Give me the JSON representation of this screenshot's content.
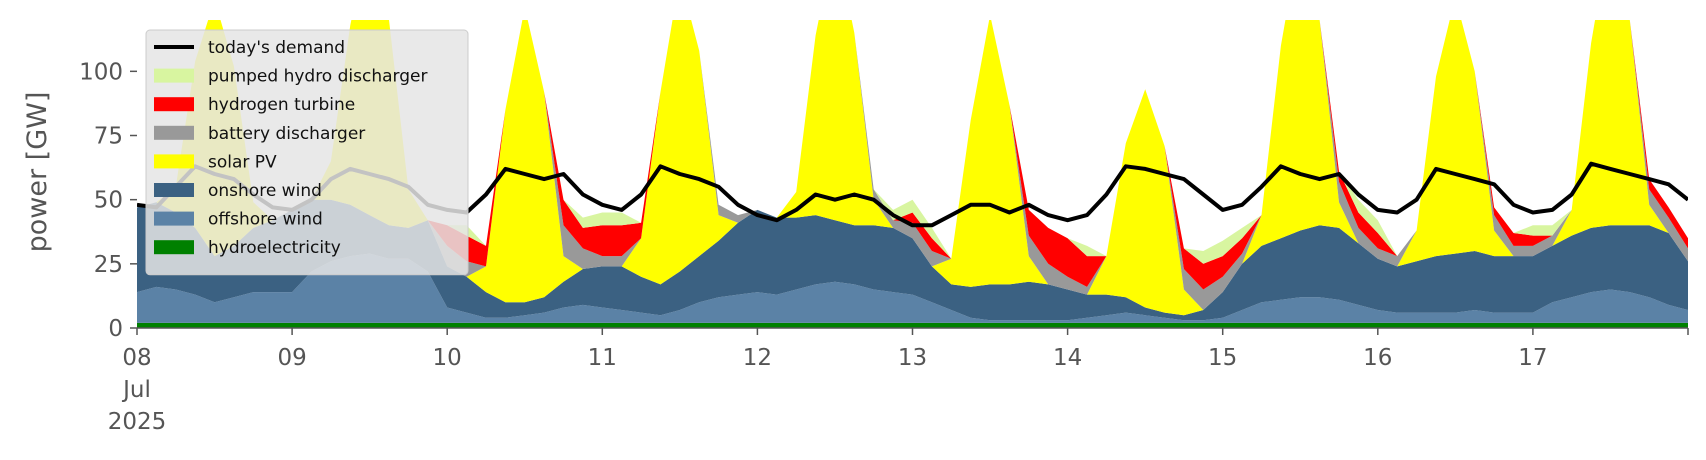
{
  "chart_data": {
    "type": "area",
    "title": "",
    "xlabel": "",
    "ylabel": "power [GW]",
    "ylim": [
      0,
      120
    ],
    "yticks": [
      0,
      25,
      50,
      75,
      100
    ],
    "x_start": "2025-07-08",
    "x_end": "2025-07-18",
    "x": [
      "2025-07-08 00:00",
      "2025-07-08 03:00",
      "2025-07-08 06:00",
      "2025-07-08 09:00",
      "2025-07-08 12:00",
      "2025-07-08 15:00",
      "2025-07-08 18:00",
      "2025-07-08 21:00",
      "2025-07-09 00:00",
      "2025-07-09 03:00",
      "2025-07-09 06:00",
      "2025-07-09 09:00",
      "2025-07-09 12:00",
      "2025-07-09 15:00",
      "2025-07-09 18:00",
      "2025-07-09 21:00",
      "2025-07-10 00:00",
      "2025-07-10 03:00",
      "2025-07-10 06:00",
      "2025-07-10 09:00",
      "2025-07-10 12:00",
      "2025-07-10 15:00",
      "2025-07-10 18:00",
      "2025-07-10 21:00",
      "2025-07-11 00:00",
      "2025-07-11 03:00",
      "2025-07-11 06:00",
      "2025-07-11 09:00",
      "2025-07-11 12:00",
      "2025-07-11 15:00",
      "2025-07-11 18:00",
      "2025-07-11 21:00",
      "2025-07-12 00:00",
      "2025-07-12 03:00",
      "2025-07-12 06:00",
      "2025-07-12 09:00",
      "2025-07-12 12:00",
      "2025-07-12 15:00",
      "2025-07-12 18:00",
      "2025-07-12 21:00",
      "2025-07-13 00:00",
      "2025-07-13 03:00",
      "2025-07-13 06:00",
      "2025-07-13 09:00",
      "2025-07-13 12:00",
      "2025-07-13 15:00",
      "2025-07-13 18:00",
      "2025-07-13 21:00",
      "2025-07-14 00:00",
      "2025-07-14 03:00",
      "2025-07-14 06:00",
      "2025-07-14 09:00",
      "2025-07-14 12:00",
      "2025-07-14 15:00",
      "2025-07-14 18:00",
      "2025-07-14 21:00",
      "2025-07-15 00:00",
      "2025-07-15 03:00",
      "2025-07-15 06:00",
      "2025-07-15 09:00",
      "2025-07-15 12:00",
      "2025-07-15 15:00",
      "2025-07-15 18:00",
      "2025-07-15 21:00",
      "2025-07-16 00:00",
      "2025-07-16 03:00",
      "2025-07-16 06:00",
      "2025-07-16 09:00",
      "2025-07-16 12:00",
      "2025-07-16 15:00",
      "2025-07-16 18:00",
      "2025-07-16 21:00",
      "2025-07-17 00:00",
      "2025-07-17 03:00",
      "2025-07-17 06:00",
      "2025-07-17 09:00",
      "2025-07-17 12:00",
      "2025-07-17 15:00",
      "2025-07-17 18:00",
      "2025-07-17 21:00",
      "2025-07-18 00:00"
    ],
    "x_ticks": [
      {
        "date": "2025-07-08",
        "label": "08",
        "sublabels": [
          "Jul",
          "2025"
        ]
      },
      {
        "date": "2025-07-09",
        "label": "09"
      },
      {
        "date": "2025-07-10",
        "label": "10"
      },
      {
        "date": "2025-07-11",
        "label": "11"
      },
      {
        "date": "2025-07-12",
        "label": "12"
      },
      {
        "date": "2025-07-13",
        "label": "13"
      },
      {
        "date": "2025-07-14",
        "label": "14"
      },
      {
        "date": "2025-07-15",
        "label": "15"
      },
      {
        "date": "2025-07-16",
        "label": "16"
      },
      {
        "date": "2025-07-17",
        "label": "17"
      },
      {
        "date": "2025-07-18",
        "label": ""
      }
    ],
    "series": [
      {
        "name": "hydroelectricity",
        "color": "#008000",
        "values": [
          2,
          2,
          2,
          2,
          2,
          2,
          2,
          2,
          2,
          2,
          2,
          2,
          2,
          2,
          2,
          2,
          2,
          2,
          2,
          2,
          2,
          2,
          2,
          2,
          2,
          2,
          2,
          2,
          2,
          2,
          2,
          2,
          2,
          2,
          2,
          2,
          2,
          2,
          2,
          2,
          2,
          2,
          2,
          2,
          2,
          2,
          2,
          2,
          2,
          2,
          2,
          2,
          2,
          2,
          2,
          2,
          2,
          2,
          2,
          2,
          2,
          2,
          2,
          2,
          2,
          2,
          2,
          2,
          2,
          2,
          2,
          2,
          2,
          2,
          2,
          2,
          2,
          2,
          2,
          2,
          2
        ]
      },
      {
        "name": "offshore wind",
        "color": "#5b82a6",
        "values": [
          12,
          14,
          13,
          11,
          8,
          10,
          12,
          12,
          12,
          20,
          24,
          26,
          27,
          25,
          25,
          20,
          6,
          4,
          2,
          2,
          3,
          4,
          6,
          7,
          6,
          5,
          4,
          3,
          5,
          8,
          10,
          11,
          12,
          11,
          13,
          15,
          16,
          15,
          13,
          12,
          11,
          8,
          5,
          2,
          1,
          1,
          1,
          1,
          1,
          2,
          3,
          4,
          3,
          2,
          1,
          1,
          2,
          5,
          8,
          9,
          10,
          10,
          9,
          7,
          5,
          4,
          4,
          4,
          4,
          5,
          4,
          4,
          4,
          8,
          10,
          12,
          13,
          12,
          10,
          7,
          5
        ]
      },
      {
        "name": "onshore wind",
        "color": "#3b6182",
        "values": [
          33,
          33,
          30,
          26,
          18,
          20,
          25,
          28,
          32,
          28,
          24,
          20,
          15,
          13,
          12,
          20,
          16,
          14,
          10,
          6,
          5,
          6,
          10,
          14,
          16,
          17,
          14,
          12,
          15,
          18,
          22,
          28,
          32,
          30,
          28,
          27,
          24,
          23,
          25,
          25,
          22,
          14,
          10,
          12,
          14,
          14,
          15,
          14,
          12,
          9,
          8,
          6,
          3,
          2,
          2,
          4,
          10,
          18,
          22,
          24,
          26,
          28,
          28,
          24,
          20,
          18,
          20,
          22,
          23,
          23,
          22,
          22,
          22,
          22,
          24,
          25,
          25,
          26,
          28,
          28,
          19
        ]
      },
      {
        "name": "solar PV",
        "color": "#ffff00",
        "values": [
          0,
          0,
          10,
          65,
          100,
          70,
          10,
          0,
          0,
          0,
          15,
          70,
          110,
          80,
          15,
          0,
          0,
          0,
          10,
          75,
          115,
          80,
          10,
          0,
          0,
          0,
          15,
          75,
          115,
          80,
          10,
          0,
          0,
          0,
          10,
          70,
          110,
          75,
          10,
          0,
          0,
          0,
          10,
          65,
          105,
          70,
          10,
          0,
          0,
          0,
          15,
          60,
          85,
          65,
          10,
          0,
          0,
          0,
          12,
          75,
          115,
          80,
          10,
          0,
          0,
          0,
          12,
          70,
          100,
          70,
          10,
          0,
          0,
          0,
          10,
          72,
          115,
          80,
          8,
          0,
          0
        ]
      },
      {
        "name": "battery discharger",
        "color": "#999999",
        "values": [
          0,
          0,
          0,
          0,
          0,
          0,
          0,
          0,
          0,
          0,
          0,
          0,
          0,
          0,
          0,
          0,
          8,
          6,
          0,
          0,
          0,
          0,
          12,
          8,
          4,
          4,
          0,
          0,
          0,
          0,
          4,
          3,
          0,
          0,
          0,
          0,
          0,
          0,
          4,
          3,
          6,
          6,
          0,
          0,
          0,
          0,
          8,
          8,
          5,
          3,
          0,
          0,
          0,
          0,
          8,
          8,
          6,
          4,
          0,
          0,
          0,
          0,
          8,
          6,
          4,
          4,
          0,
          0,
          0,
          0,
          6,
          4,
          4,
          4,
          0,
          0,
          0,
          0,
          6,
          6,
          5
        ]
      },
      {
        "name": "hydrogen turbine",
        "color": "#ff0000",
        "values": [
          0,
          0,
          0,
          0,
          0,
          0,
          0,
          0,
          0,
          0,
          0,
          0,
          0,
          0,
          0,
          0,
          8,
          10,
          8,
          0,
          0,
          0,
          10,
          8,
          12,
          12,
          6,
          0,
          0,
          0,
          0,
          0,
          0,
          0,
          0,
          0,
          0,
          0,
          0,
          0,
          4,
          5,
          0,
          0,
          0,
          0,
          10,
          14,
          15,
          12,
          0,
          0,
          0,
          0,
          8,
          10,
          8,
          6,
          0,
          0,
          0,
          0,
          4,
          6,
          6,
          0,
          0,
          0,
          0,
          0,
          3,
          5,
          4,
          0,
          0,
          0,
          0,
          0,
          4,
          4,
          4
        ]
      },
      {
        "name": "pumped hydro discharger",
        "color": "#d8f5a0",
        "values": [
          0,
          0,
          0,
          0,
          0,
          0,
          0,
          0,
          0,
          0,
          0,
          0,
          0,
          0,
          0,
          0,
          0,
          4,
          0,
          0,
          0,
          0,
          0,
          4,
          5,
          5,
          0,
          0,
          0,
          0,
          0,
          0,
          0,
          0,
          0,
          0,
          0,
          0,
          0,
          4,
          5,
          4,
          0,
          0,
          0,
          0,
          0,
          0,
          0,
          4,
          0,
          0,
          0,
          0,
          0,
          5,
          6,
          4,
          0,
          0,
          0,
          0,
          0,
          5,
          5,
          0,
          0,
          0,
          0,
          0,
          0,
          0,
          4,
          4,
          0,
          0,
          0,
          0,
          0,
          0,
          0
        ]
      }
    ],
    "demand": {
      "name": "today's demand",
      "color": "#000000",
      "values": [
        48,
        47,
        55,
        63,
        60,
        58,
        52,
        47,
        46,
        50,
        58,
        62,
        60,
        58,
        55,
        48,
        46,
        45,
        52,
        62,
        60,
        58,
        60,
        52,
        48,
        46,
        52,
        63,
        60,
        58,
        55,
        48,
        44,
        42,
        46,
        52,
        50,
        52,
        50,
        44,
        40,
        40,
        44,
        48,
        48,
        45,
        48,
        44,
        42,
        44,
        52,
        63,
        62,
        60,
        58,
        52,
        46,
        48,
        55,
        63,
        60,
        58,
        60,
        52,
        46,
        45,
        50,
        62,
        60,
        58,
        56,
        48,
        45,
        46,
        52,
        64,
        62,
        60,
        58,
        56,
        50
      ]
    },
    "legend": {
      "placement": "top-left",
      "entries": [
        "today's demand",
        "pumped hydro discharger",
        "hydrogen turbine",
        "battery discharger",
        "solar PV",
        "onshore wind",
        "offshore wind",
        "hydroelectricity"
      ]
    }
  }
}
